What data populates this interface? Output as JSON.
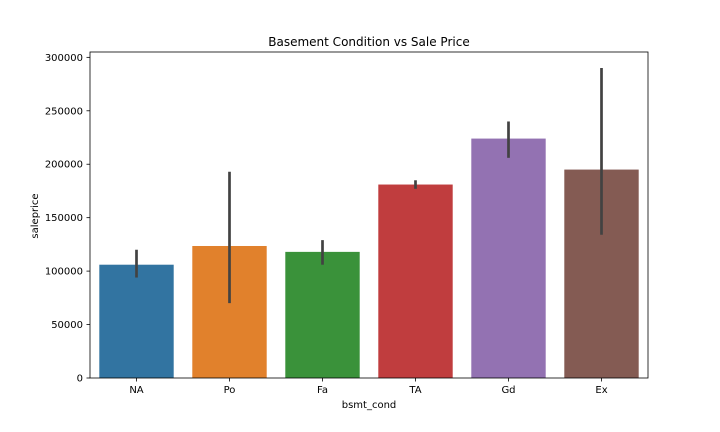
{
  "chart_data": {
    "type": "bar",
    "title": "Basement Condition vs Sale Price",
    "xlabel": "bsmt_cond",
    "ylabel": "saleprice",
    "categories": [
      "NA",
      "Po",
      "Fa",
      "TA",
      "Gd",
      "Ex"
    ],
    "values": [
      106000,
      123500,
      118000,
      181000,
      224000,
      195000
    ],
    "error_low": [
      94000,
      70000,
      106000,
      177000,
      206000,
      134000
    ],
    "error_high": [
      120000,
      193000,
      129000,
      185000,
      240000,
      290000
    ],
    "colors": [
      "#3274a1",
      "#e1812c",
      "#3a923a",
      "#c03d3e",
      "#9372b2",
      "#845b53"
    ],
    "error_color": "#424242",
    "ylim": [
      0,
      305000
    ],
    "yticks": [
      0,
      50000,
      100000,
      150000,
      200000,
      250000,
      300000
    ],
    "ytick_labels": [
      "0",
      "50000",
      "100000",
      "150000",
      "200000",
      "250000",
      "300000"
    ],
    "grid": false,
    "legend": "none"
  }
}
